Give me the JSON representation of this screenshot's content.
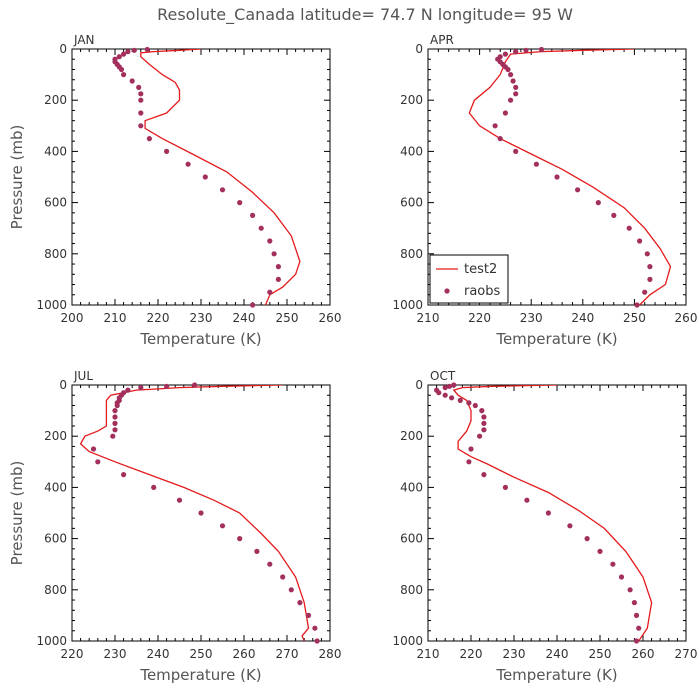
{
  "title": "Resolute_Canada   latitude= 74.7 N longitude= 95 W",
  "colors": {
    "model": "#e41a1c",
    "obs": "#a3305c",
    "frame": "#000000"
  },
  "chart_data": [
    {
      "type": "line",
      "panel": "JAN",
      "xlabel": "Temperature (K)",
      "ylabel": "Pressure (mb)",
      "xlim": [
        200,
        260
      ],
      "xticks": [
        200,
        210,
        220,
        230,
        240,
        250,
        260
      ],
      "ylim": [
        1000,
        0
      ],
      "yticks": [
        0,
        200,
        400,
        600,
        800,
        1000
      ],
      "series": [
        {
          "kind": "line",
          "points": [
            [
              230,
              0
            ],
            [
              225,
              5
            ],
            [
              219,
              10
            ],
            [
              216,
              15
            ],
            [
              216,
              30
            ],
            [
              218,
              60
            ],
            [
              221,
              100
            ],
            [
              224,
              130
            ],
            [
              225,
              160
            ],
            [
              225,
              200
            ],
            [
              222,
              250
            ],
            [
              217,
              280
            ],
            [
              217,
              310
            ],
            [
              221,
              350
            ],
            [
              228,
              410
            ],
            [
              236,
              480
            ],
            [
              242,
              560
            ],
            [
              247,
              640
            ],
            [
              251,
              730
            ],
            [
              253,
              830
            ],
            [
              252,
              880
            ],
            [
              249,
              930
            ],
            [
              246,
              960
            ],
            [
              245,
              1000
            ]
          ]
        },
        {
          "kind": "scatter",
          "points": [
            [
              217.5,
              2
            ],
            [
              214.5,
              5
            ],
            [
              213,
              10
            ],
            [
              212,
              20
            ],
            [
              211,
              30
            ],
            [
              210,
              40
            ],
            [
              210,
              50
            ],
            [
              210.5,
              60
            ],
            [
              211,
              70
            ],
            [
              211.5,
              80
            ],
            [
              212,
              100
            ],
            [
              214,
              125
            ],
            [
              215.5,
              150
            ],
            [
              216,
              175
            ],
            [
              216,
              200
            ],
            [
              216,
              250
            ],
            [
              216,
              300
            ],
            [
              218,
              350
            ],
            [
              222,
              400
            ],
            [
              227,
              450
            ],
            [
              231,
              500
            ],
            [
              235,
              550
            ],
            [
              239,
              600
            ],
            [
              242,
              650
            ],
            [
              244,
              700
            ],
            [
              246,
              750
            ],
            [
              247,
              800
            ],
            [
              248,
              850
            ],
            [
              248,
              900
            ],
            [
              246,
              950
            ],
            [
              242,
              1000
            ]
          ]
        }
      ]
    },
    {
      "type": "line",
      "panel": "APR",
      "xlabel": "Temperature (K)",
      "ylabel": "",
      "xlim": [
        210,
        260
      ],
      "xticks": [
        210,
        220,
        230,
        240,
        250,
        260
      ],
      "ylim": [
        1000,
        0
      ],
      "yticks": [
        0,
        200,
        400,
        600,
        800,
        1000
      ],
      "series": [
        {
          "name": "test2",
          "kind": "line",
          "points": [
            [
              250,
              0
            ],
            [
              240,
              5
            ],
            [
              232,
              10
            ],
            [
              226,
              20
            ],
            [
              225,
              50
            ],
            [
              224,
              100
            ],
            [
              222,
              150
            ],
            [
              219,
              200
            ],
            [
              218,
              250
            ],
            [
              220,
              300
            ],
            [
              224,
              350
            ],
            [
              230,
              410
            ],
            [
              236,
              470
            ],
            [
              242,
              540
            ],
            [
              248,
              620
            ],
            [
              252,
              700
            ],
            [
              255,
              780
            ],
            [
              257,
              850
            ],
            [
              256,
              920
            ],
            [
              253,
              960
            ],
            [
              251,
              1000
            ]
          ]
        },
        {
          "name": "raobs",
          "kind": "scatter",
          "points": [
            [
              232,
              2
            ],
            [
              229,
              5
            ],
            [
              227,
              10
            ],
            [
              225,
              20
            ],
            [
              224,
              30
            ],
            [
              223.5,
              40
            ],
            [
              224,
              50
            ],
            [
              224.5,
              60
            ],
            [
              225,
              70
            ],
            [
              225.5,
              80
            ],
            [
              226,
              100
            ],
            [
              226.5,
              125
            ],
            [
              227,
              150
            ],
            [
              227,
              175
            ],
            [
              226,
              200
            ],
            [
              225,
              250
            ],
            [
              223,
              300
            ],
            [
              224,
              350
            ],
            [
              227,
              400
            ],
            [
              231,
              450
            ],
            [
              235,
              500
            ],
            [
              239,
              550
            ],
            [
              243,
              600
            ],
            [
              246,
              650
            ],
            [
              249,
              700
            ],
            [
              251,
              750
            ],
            [
              252.5,
              800
            ],
            [
              253,
              850
            ],
            [
              253,
              900
            ],
            [
              252,
              950
            ],
            [
              250.5,
              1000
            ]
          ]
        }
      ]
    },
    {
      "type": "line",
      "panel": "JUL",
      "xlabel": "Temperature (K)",
      "ylabel": "Pressure (mb)",
      "xlim": [
        220,
        280
      ],
      "xticks": [
        220,
        230,
        240,
        250,
        260,
        270,
        280
      ],
      "ylim": [
        1000,
        0
      ],
      "yticks": [
        0,
        200,
        400,
        600,
        800,
        1000
      ],
      "series": [
        {
          "kind": "line",
          "points": [
            [
              269,
              0
            ],
            [
              255,
              5
            ],
            [
              245,
              10
            ],
            [
              235,
              20
            ],
            [
              229,
              40
            ],
            [
              228,
              60
            ],
            [
              228,
              100
            ],
            [
              228,
              140
            ],
            [
              228,
              160
            ],
            [
              226,
              180
            ],
            [
              223,
              200
            ],
            [
              222,
              230
            ],
            [
              224,
              260
            ],
            [
              230,
              300
            ],
            [
              238,
              350
            ],
            [
              246,
              400
            ],
            [
              253,
              450
            ],
            [
              259,
              500
            ],
            [
              264,
              580
            ],
            [
              268,
              650
            ],
            [
              272,
              750
            ],
            [
              274,
              850
            ],
            [
              275,
              950
            ],
            [
              273.5,
              980
            ],
            [
              274,
              1000
            ]
          ]
        },
        {
          "kind": "scatter",
          "points": [
            [
              248.5,
              0
            ],
            [
              242,
              5
            ],
            [
              236,
              10
            ],
            [
              233,
              20
            ],
            [
              232,
              30
            ],
            [
              231.5,
              40
            ],
            [
              231,
              50
            ],
            [
              231,
              60
            ],
            [
              230.5,
              70
            ],
            [
              230.5,
              80
            ],
            [
              230,
              100
            ],
            [
              230,
              125
            ],
            [
              230,
              150
            ],
            [
              230,
              175
            ],
            [
              229.5,
              200
            ],
            [
              225,
              250
            ],
            [
              226,
              300
            ],
            [
              232,
              350
            ],
            [
              239,
              400
            ],
            [
              245,
              450
            ],
            [
              250,
              500
            ],
            [
              255,
              550
            ],
            [
              259,
              600
            ],
            [
              263,
              650
            ],
            [
              266,
              700
            ],
            [
              269,
              750
            ],
            [
              271,
              800
            ],
            [
              273,
              850
            ],
            [
              275,
              900
            ],
            [
              276.5,
              950
            ],
            [
              277,
              1000
            ]
          ]
        }
      ]
    },
    {
      "type": "line",
      "panel": "OCT",
      "xlabel": "Temperature (K)",
      "ylabel": "",
      "xlim": [
        210,
        270
      ],
      "xticks": [
        210,
        220,
        230,
        240,
        250,
        260,
        270
      ],
      "ylim": [
        1000,
        0
      ],
      "yticks": [
        0,
        200,
        400,
        600,
        800,
        1000
      ],
      "series": [
        {
          "kind": "line",
          "points": [
            [
              240,
              0
            ],
            [
              225,
              5
            ],
            [
              218,
              10
            ],
            [
              216,
              20
            ],
            [
              217,
              40
            ],
            [
              219,
              60
            ],
            [
              220,
              100
            ],
            [
              220,
              140
            ],
            [
              219,
              180
            ],
            [
              217,
              220
            ],
            [
              217,
              250
            ],
            [
              220,
              280
            ],
            [
              224,
              310
            ],
            [
              230,
              360
            ],
            [
              238,
              420
            ],
            [
              245,
              490
            ],
            [
              251,
              560
            ],
            [
              256,
              650
            ],
            [
              260,
              750
            ],
            [
              262,
              850
            ],
            [
              261,
              950
            ],
            [
              259,
              1000
            ]
          ]
        },
        {
          "kind": "scatter",
          "points": [
            [
              216,
              0
            ],
            [
              215,
              5
            ],
            [
              214,
              10
            ],
            [
              212,
              20
            ],
            [
              212.5,
              30
            ],
            [
              214,
              40
            ],
            [
              215.5,
              50
            ],
            [
              217.5,
              60
            ],
            [
              219.5,
              70
            ],
            [
              221,
              80
            ],
            [
              222.5,
              100
            ],
            [
              223,
              125
            ],
            [
              223,
              150
            ],
            [
              223,
              175
            ],
            [
              222,
              200
            ],
            [
              220,
              250
            ],
            [
              219.5,
              300
            ],
            [
              223,
              350
            ],
            [
              228,
              400
            ],
            [
              233,
              450
            ],
            [
              238,
              500
            ],
            [
              243,
              550
            ],
            [
              247,
              600
            ],
            [
              250,
              650
            ],
            [
              253,
              700
            ],
            [
              255,
              750
            ],
            [
              257,
              800
            ],
            [
              258,
              850
            ],
            [
              258.5,
              900
            ],
            [
              259,
              950
            ],
            [
              258.5,
              1000
            ]
          ]
        }
      ]
    }
  ]
}
